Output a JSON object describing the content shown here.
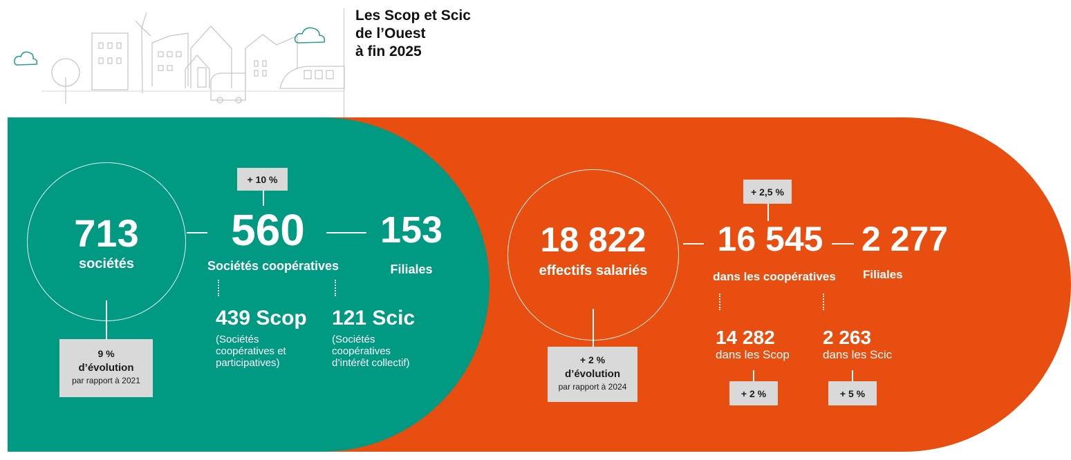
{
  "header": {
    "title_lines": [
      "Les Scop et Scic",
      "de l’Ouest",
      "à fin 2025"
    ]
  },
  "colors": {
    "green": "#009982",
    "orange": "#e84e0f",
    "tag_bg": "#d9d9d9"
  },
  "societes": {
    "total_value": "713",
    "total_label": "sociétés",
    "coop_badge": "+ 10 %",
    "coop_value": "560",
    "coop_label": "Sociétés coopératives",
    "filiales_value": "153",
    "filiales_label": "Filiales",
    "scop": {
      "value": "439 Scop",
      "desc": [
        "(Sociétés",
        "coopératives et",
        "participatives)"
      ]
    },
    "scic": {
      "value": "121 Scic",
      "desc": [
        "(Sociétés",
        "coopératives",
        "d’intérêt collectif)"
      ]
    },
    "evolution": {
      "pct": "9 %",
      "label": "d’évolution",
      "ref": "par rapport à 2021"
    }
  },
  "effectifs": {
    "total_value": "18 822",
    "total_label": "effectifs salariés",
    "coop_badge": "+ 2,5 %",
    "coop_value": "16 545",
    "coop_label": "dans les coopératives",
    "filiales_value": "2 277",
    "filiales_label": "Filiales",
    "scop": {
      "value": "14 282",
      "label": "dans les Scop",
      "badge": "+ 2 %"
    },
    "scic": {
      "value": "2 263",
      "label": "dans les Scic",
      "badge": "+ 5 %"
    },
    "evolution": {
      "pct": "+ 2 %",
      "label": "d’évolution",
      "ref": "par rapport à 2024"
    }
  }
}
